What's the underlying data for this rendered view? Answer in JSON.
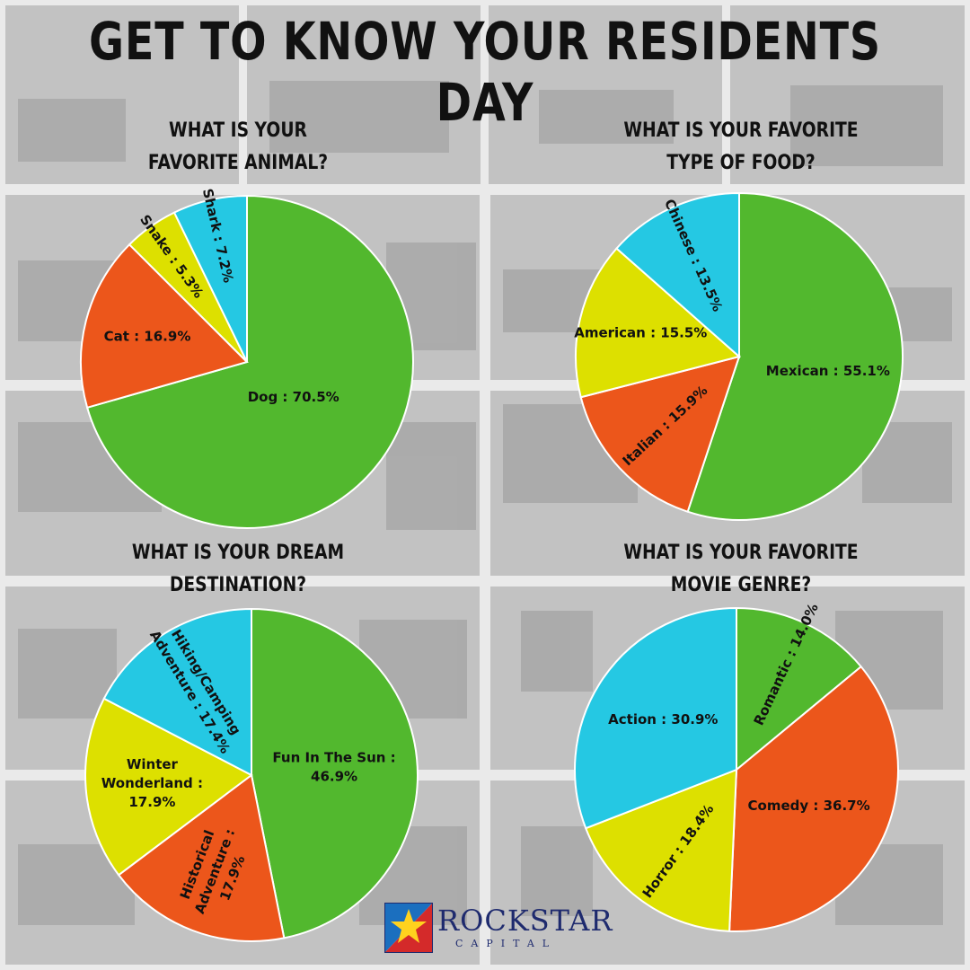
{
  "title": "GET TO KNOW YOUR RESIDENTS DAY",
  "colors": {
    "green": "#52b82e",
    "orange": "#ec561b",
    "yellow": "#dde000",
    "cyan": "#25c8e3"
  },
  "questions": [
    [
      "WHAT IS YOUR",
      "FAVORITE ANIMAL?"
    ],
    [
      "WHAT IS YOUR FAVORITE",
      "TYPE OF FOOD?"
    ],
    [
      "WHAT IS YOUR DREAM",
      "DESTINATION?"
    ],
    [
      "WHAT IS YOUR FAVORITE",
      "MOVIE GENRE?"
    ]
  ],
  "chart_data": [
    {
      "type": "pie",
      "slices": [
        {
          "label": "Dog : 70.5%",
          "value": 70.5,
          "color": "green"
        },
        {
          "label": "Cat : 16.9%",
          "value": 16.9,
          "color": "orange"
        },
        {
          "label": "Snake : 5.3%",
          "value": 5.3,
          "color": "yellow"
        },
        {
          "label": "Shark : 7.2%",
          "value": 7.2,
          "color": "cyan"
        }
      ]
    },
    {
      "type": "pie",
      "slices": [
        {
          "label": "Mexican : 55.1%",
          "value": 55.1,
          "color": "green"
        },
        {
          "label": "Italian : 15.9%",
          "value": 15.9,
          "color": "orange"
        },
        {
          "label": "American : 15.5%",
          "value": 15.5,
          "color": "yellow"
        },
        {
          "label": "Chinese : 13.5%",
          "value": 13.5,
          "color": "cyan"
        }
      ]
    },
    {
      "type": "pie",
      "slices": [
        {
          "label": "Fun In The Sun : 46.9%",
          "value": 46.9,
          "color": "green"
        },
        {
          "label": "Historical Adventure : 17.9%",
          "value": 17.9,
          "color": "orange"
        },
        {
          "label": "Winter Wonderland : 17.9%",
          "value": 17.9,
          "color": "yellow"
        },
        {
          "label": "Hiking/Camping Adventure : 17.4%",
          "value": 17.4,
          "color": "cyan"
        }
      ]
    },
    {
      "type": "pie",
      "slices": [
        {
          "label": "Romantic : 14.0%",
          "value": 14.0,
          "color": "green"
        },
        {
          "label": "Comedy : 36.7%",
          "value": 36.7,
          "color": "orange"
        },
        {
          "label": "Horror : 18.4%",
          "value": 18.4,
          "color": "yellow"
        },
        {
          "label": "Action : 30.9%",
          "value": 30.9,
          "color": "cyan"
        }
      ]
    }
  ],
  "logo": {
    "name": "ROCKSTAR",
    "sub": "CAPITAL"
  }
}
